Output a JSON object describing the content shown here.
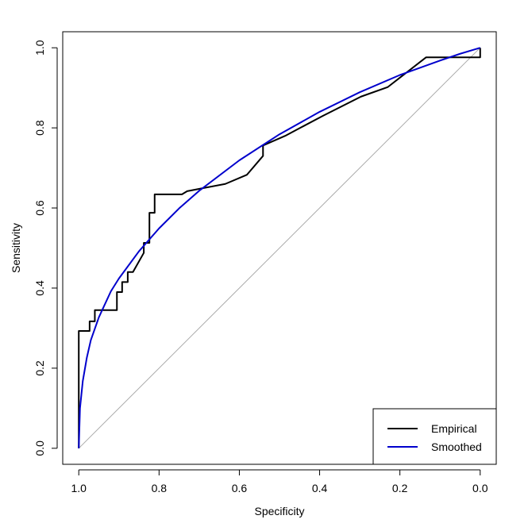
{
  "chart_data": {
    "type": "line",
    "title": "",
    "xlabel": "Specificity",
    "ylabel": "Sensitivity",
    "xlim": [
      1.04,
      -0.04
    ],
    "ylim": [
      -0.04,
      1.04
    ],
    "x_reversed": true,
    "xticks": [
      1.0,
      0.8,
      0.6,
      0.4,
      0.2,
      0.0
    ],
    "xtick_labels": [
      "1.0",
      "0.8",
      "0.6",
      "0.4",
      "0.2",
      "0.0"
    ],
    "yticks": [
      0.0,
      0.2,
      0.4,
      0.6,
      0.8,
      1.0
    ],
    "ytick_labels": [
      "0.0",
      "0.2",
      "0.4",
      "0.6",
      "0.8",
      "1.0"
    ],
    "grid": false,
    "diagonal": {
      "from": [
        1.0,
        0.0
      ],
      "to": [
        0.0,
        1.0
      ],
      "color": "#aaaaaa"
    },
    "legend": {
      "position": "bottom-right",
      "entries": [
        {
          "label": "Empirical",
          "color": "#000000"
        },
        {
          "label": "Smoothed",
          "color": "#0000cc"
        }
      ]
    },
    "series": [
      {
        "name": "Empirical",
        "color": "#000000",
        "x": [
          1.0,
          1.0,
          0.973,
          0.973,
          0.96,
          0.96,
          0.905,
          0.905,
          0.892,
          0.892,
          0.878,
          0.878,
          0.865,
          0.865,
          0.838,
          0.838,
          0.824,
          0.824,
          0.811,
          0.811,
          0.743,
          0.73,
          0.635,
          0.581,
          0.541,
          0.541,
          0.486,
          0.392,
          0.297,
          0.23,
          0.135,
          0.0,
          0.0
        ],
        "y": [
          0.0,
          0.293,
          0.293,
          0.317,
          0.317,
          0.345,
          0.345,
          0.39,
          0.39,
          0.415,
          0.415,
          0.44,
          0.44,
          0.44,
          0.488,
          0.513,
          0.513,
          0.588,
          0.588,
          0.634,
          0.634,
          0.642,
          0.66,
          0.683,
          0.73,
          0.756,
          0.78,
          0.83,
          0.878,
          0.902,
          0.976,
          0.976,
          1.0
        ]
      },
      {
        "name": "Smoothed",
        "color": "#0000cc",
        "x": [
          1.0,
          0.997,
          0.99,
          0.98,
          0.97,
          0.95,
          0.92,
          0.9,
          0.85,
          0.8,
          0.75,
          0.7,
          0.6,
          0.5,
          0.4,
          0.3,
          0.2,
          0.1,
          0.05,
          0.0
        ],
        "y": [
          0.0,
          0.1,
          0.168,
          0.226,
          0.27,
          0.327,
          0.392,
          0.424,
          0.492,
          0.549,
          0.599,
          0.643,
          0.719,
          0.784,
          0.84,
          0.889,
          0.932,
          0.968,
          0.985,
          1.0
        ]
      }
    ]
  }
}
